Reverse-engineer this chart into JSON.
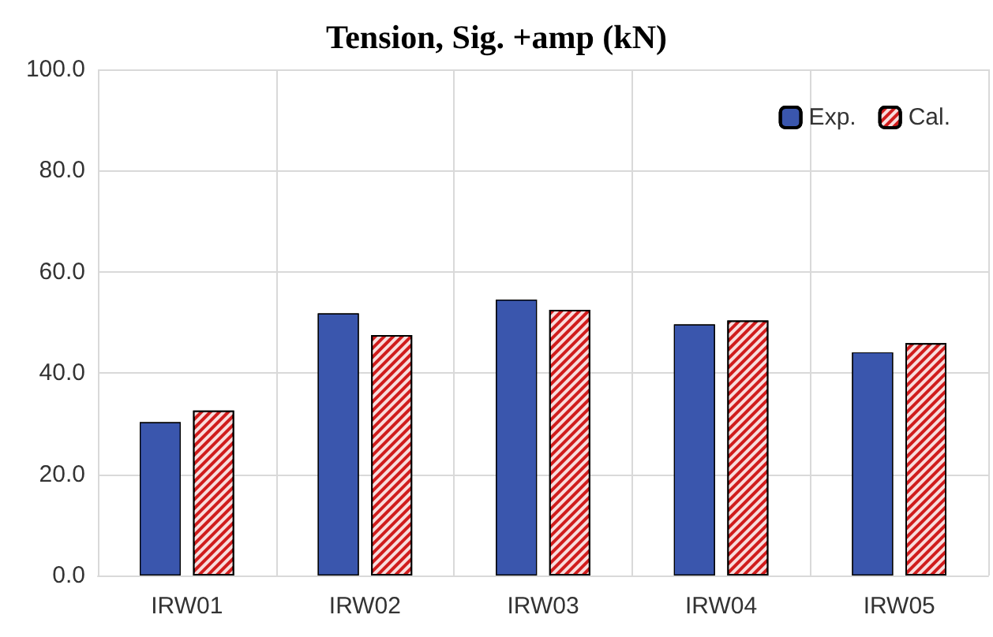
{
  "chart_data": {
    "type": "bar",
    "title": "Tension, Sig. +amp (kN)",
    "categories": [
      "IRW01",
      "IRW02",
      "IRW03",
      "IRW04",
      "IRW05"
    ],
    "series": [
      {
        "name": "Exp.",
        "color": "#3a56ad",
        "values": [
          30.3,
          51.8,
          54.5,
          49.6,
          44.1
        ]
      },
      {
        "name": "Cal.",
        "color": "#d01c1c",
        "values": [
          32.6,
          47.5,
          52.5,
          50.4,
          45.9
        ]
      }
    ],
    "ylim": [
      0,
      100
    ],
    "yticks": [
      {
        "value": 0,
        "label": "0.0"
      },
      {
        "value": 20,
        "label": "20.0"
      },
      {
        "value": 40,
        "label": "40.0"
      },
      {
        "value": 60,
        "label": "60.0"
      },
      {
        "value": 80,
        "label": "80.0"
      },
      {
        "value": 100,
        "label": "100.0"
      }
    ],
    "grid": true,
    "legend": "top right"
  }
}
